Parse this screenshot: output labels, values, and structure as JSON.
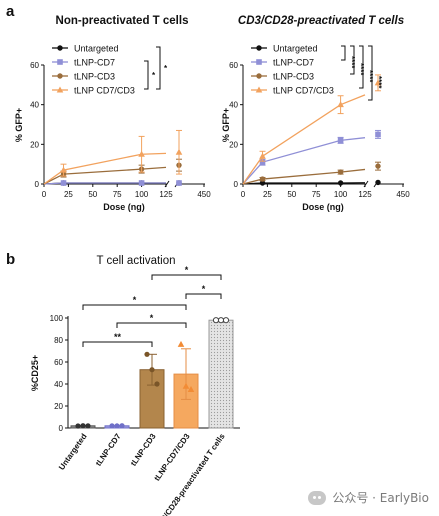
{
  "figure_a": {
    "panel_label": "a",
    "ylabel": "% GFP+",
    "xlabel": "Dose (ng)",
    "colors": {
      "Untargeted": "#111111",
      "tLNP-CD7": "#8f8fd6",
      "tLNP-CD3": "#9a6d3c",
      "tLNP CD7/CD3": "#f2a25e"
    },
    "legend": [
      "Untargeted",
      "tLNP-CD7",
      "tLNP-CD3",
      "tLNP CD7/CD3"
    ],
    "y_ticks": [
      "0",
      "20",
      "40",
      "60"
    ],
    "x_ticks": [
      "0",
      "25",
      "50",
      "75",
      "100",
      "125",
      "450"
    ],
    "left": {
      "title": "Non-preactivated T cells",
      "significance": [
        "*",
        "*"
      ]
    },
    "right": {
      "title": "CD3/CD28-preactivated T cells",
      "significance": [
        "****",
        "****",
        "****",
        "****"
      ]
    }
  },
  "figure_b": {
    "panel_label": "b",
    "title": "T cell activation",
    "ylabel": "%CD25+",
    "y_ticks": [
      "0",
      "20",
      "40",
      "60",
      "80",
      "100"
    ],
    "categories": [
      "Untargeted",
      "tLNP-CD7",
      "tLNP-CD3",
      "tLNP-CD7/CD3",
      "CD3/CD28-preactivated T cells"
    ],
    "significance": [
      "**",
      "*",
      "*",
      "*",
      "*"
    ]
  },
  "watermark": {
    "text": "公众号 · EarlyBio",
    "icon": "chat-bubble-icon"
  },
  "chart_data": [
    {
      "type": "line",
      "title": "Non-preactivated T cells",
      "xlabel": "Dose (ng)",
      "ylabel": "% GFP+",
      "x": [
        0,
        20,
        100,
        400
      ],
      "xlim": [
        0,
        450
      ],
      "ylim": [
        0,
        60
      ],
      "series": [
        {
          "name": "Untargeted",
          "values": [
            0,
            0.5,
            0.5,
            0.5
          ],
          "errors": [
            0,
            0.3,
            0.3,
            0.3
          ]
        },
        {
          "name": "tLNP-CD7",
          "values": [
            0,
            0.5,
            0.5,
            0.5
          ],
          "errors": [
            0,
            0.3,
            0.3,
            0.3
          ]
        },
        {
          "name": "tLNP-CD3",
          "values": [
            0,
            5,
            7.5,
            9.5
          ],
          "errors": [
            0,
            1.5,
            2,
            3
          ]
        },
        {
          "name": "tLNP CD7/CD3",
          "values": [
            0,
            7,
            15,
            16
          ],
          "errors": [
            0,
            3,
            9,
            11
          ]
        }
      ],
      "legend_position": "top-left",
      "grid": false
    },
    {
      "type": "line",
      "title": "CD3/CD28-preactivated T cells",
      "xlabel": "Dose (ng)",
      "ylabel": "% GFP+",
      "x": [
        0,
        20,
        100,
        400
      ],
      "xlim": [
        0,
        450
      ],
      "ylim": [
        0,
        60
      ],
      "series": [
        {
          "name": "Untargeted",
          "values": [
            0,
            0.5,
            0.5,
            0.8
          ],
          "errors": [
            0,
            0.3,
            0.3,
            0.4
          ]
        },
        {
          "name": "tLNP-CD7",
          "values": [
            0,
            11,
            22,
            25
          ],
          "errors": [
            0,
            1.5,
            1.5,
            2
          ]
        },
        {
          "name": "tLNP-CD3",
          "values": [
            0,
            2.5,
            6,
            9
          ],
          "errors": [
            0,
            0.8,
            1,
            2
          ]
        },
        {
          "name": "tLNP CD7/CD3",
          "values": [
            0,
            14,
            40,
            51
          ],
          "errors": [
            0,
            2.5,
            4.5,
            4
          ]
        }
      ],
      "legend_position": "top-left",
      "grid": false
    },
    {
      "type": "bar",
      "title": "T cell activation",
      "xlabel": "",
      "ylabel": "%CD25+",
      "ylim": [
        0,
        100
      ],
      "categories": [
        "Untargeted",
        "tLNP-CD7",
        "tLNP-CD3",
        "tLNP-CD7/CD3",
        "CD3/CD28-preactivated T cells"
      ],
      "values": [
        2,
        2,
        53,
        49,
        98
      ],
      "errors": [
        0.5,
        0.5,
        14,
        23,
        0.5
      ],
      "points": [
        [
          1.8,
          2.1,
          2.0
        ],
        [
          2.0,
          1.9,
          2.1
        ],
        [
          67,
          53,
          40
        ],
        [
          76,
          38,
          35
        ],
        [
          98,
          98,
          98
        ]
      ],
      "colors": [
        "#8c8c8c",
        "#9a9ae0",
        "#b3864c",
        "#f5a85f",
        "#dcdcdc"
      ]
    }
  ]
}
